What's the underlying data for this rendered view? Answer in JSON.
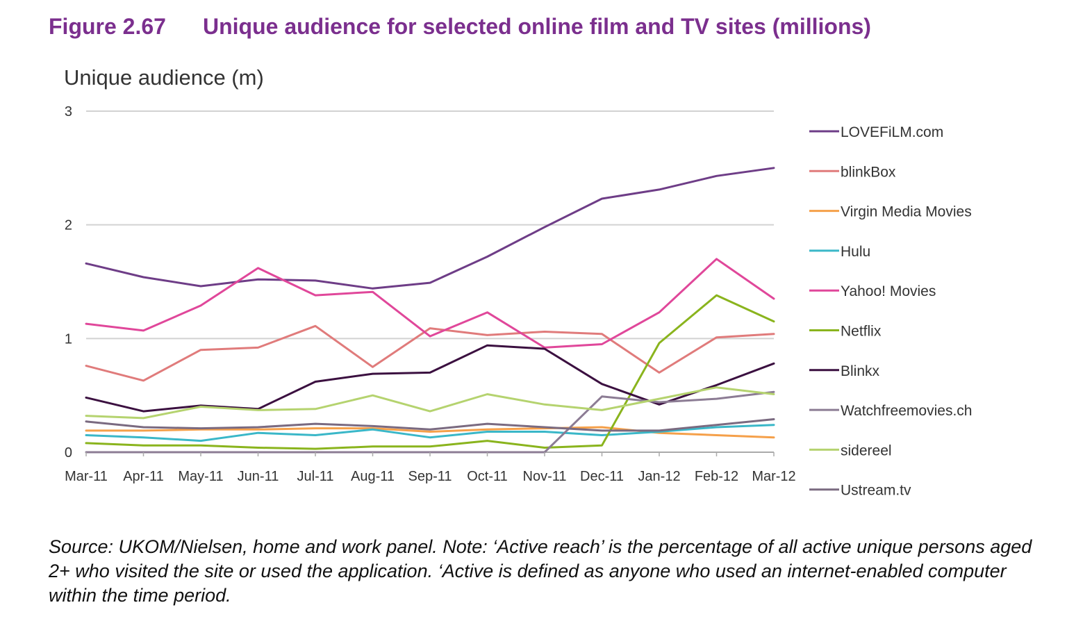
{
  "figure": {
    "number": "Figure 2.67",
    "title": "Unique audience for selected online film and TV sites (millions)"
  },
  "source_note": "Source: UKOM/Nielsen, home and work panel. Note: ‘Active reach’ is the percentage of all active unique persons aged 2+ who visited the site or used the application. ‘Active is defined as anyone who used an internet-enabled computer within the time period.",
  "chart_data": {
    "type": "line",
    "title": "",
    "ylabel": "Unique audience (m)",
    "xlabel": "",
    "ylim": [
      0,
      3
    ],
    "yticks": [
      0,
      1,
      2,
      3
    ],
    "grid": true,
    "legend_position": "right",
    "categories": [
      "Mar-11",
      "Apr-11",
      "May-11",
      "Jun-11",
      "Jul-11",
      "Aug-11",
      "Sep-11",
      "Oct-11",
      "Nov-11",
      "Dec-11",
      "Jan-12",
      "Feb-12",
      "Mar-12"
    ],
    "series": [
      {
        "name": "LOVEFiLM.com",
        "color": "#6e3d87",
        "values": [
          1.66,
          1.54,
          1.46,
          1.52,
          1.51,
          1.44,
          1.49,
          1.72,
          1.98,
          2.23,
          2.31,
          2.43,
          2.5
        ]
      },
      {
        "name": "blinkBox",
        "color": "#e07b7b",
        "values": [
          0.76,
          0.63,
          0.9,
          0.92,
          1.11,
          0.75,
          1.09,
          1.03,
          1.06,
          1.04,
          0.7,
          1.01,
          1.04
        ]
      },
      {
        "name": "Virgin Media Movies",
        "color": "#f5a04a",
        "values": [
          0.19,
          0.19,
          0.2,
          0.2,
          0.21,
          0.21,
          0.18,
          0.2,
          0.21,
          0.22,
          0.17,
          0.15,
          0.13
        ]
      },
      {
        "name": "Hulu",
        "color": "#3ab7c8",
        "values": [
          0.15,
          0.13,
          0.1,
          0.17,
          0.15,
          0.2,
          0.13,
          0.18,
          0.18,
          0.15,
          0.18,
          0.22,
          0.24
        ]
      },
      {
        "name": "Yahoo! Movies",
        "color": "#e0479a",
        "values": [
          1.13,
          1.07,
          1.29,
          1.62,
          1.38,
          1.41,
          1.02,
          1.23,
          0.92,
          0.95,
          1.23,
          1.7,
          1.35
        ]
      },
      {
        "name": "Netflix",
        "color": "#8ab41d",
        "values": [
          0.08,
          0.06,
          0.06,
          0.04,
          0.03,
          0.05,
          0.05,
          0.1,
          0.04,
          0.06,
          0.96,
          1.38,
          1.15
        ]
      },
      {
        "name": "Blinkx",
        "color": "#3b1040",
        "values": [
          0.48,
          0.36,
          0.41,
          0.38,
          0.62,
          0.69,
          0.7,
          0.94,
          0.91,
          0.6,
          0.42,
          0.59,
          0.78
        ]
      },
      {
        "name": "Watchfreemovies.ch",
        "color": "#8c7c94",
        "values": [
          0.0,
          0.0,
          0.0,
          0.0,
          0.0,
          0.0,
          0.0,
          0.0,
          0.0,
          0.49,
          0.44,
          0.47,
          0.53
        ]
      },
      {
        "name": "sidereel",
        "color": "#b5d36f",
        "values": [
          0.32,
          0.3,
          0.4,
          0.37,
          0.38,
          0.5,
          0.36,
          0.51,
          0.42,
          0.37,
          0.47,
          0.57,
          0.51
        ]
      },
      {
        "name": "Ustream.tv",
        "color": "#7a6a80",
        "values": [
          0.27,
          0.22,
          0.21,
          0.22,
          0.25,
          0.23,
          0.2,
          0.25,
          0.22,
          0.19,
          0.19,
          0.24,
          0.29
        ]
      }
    ]
  }
}
